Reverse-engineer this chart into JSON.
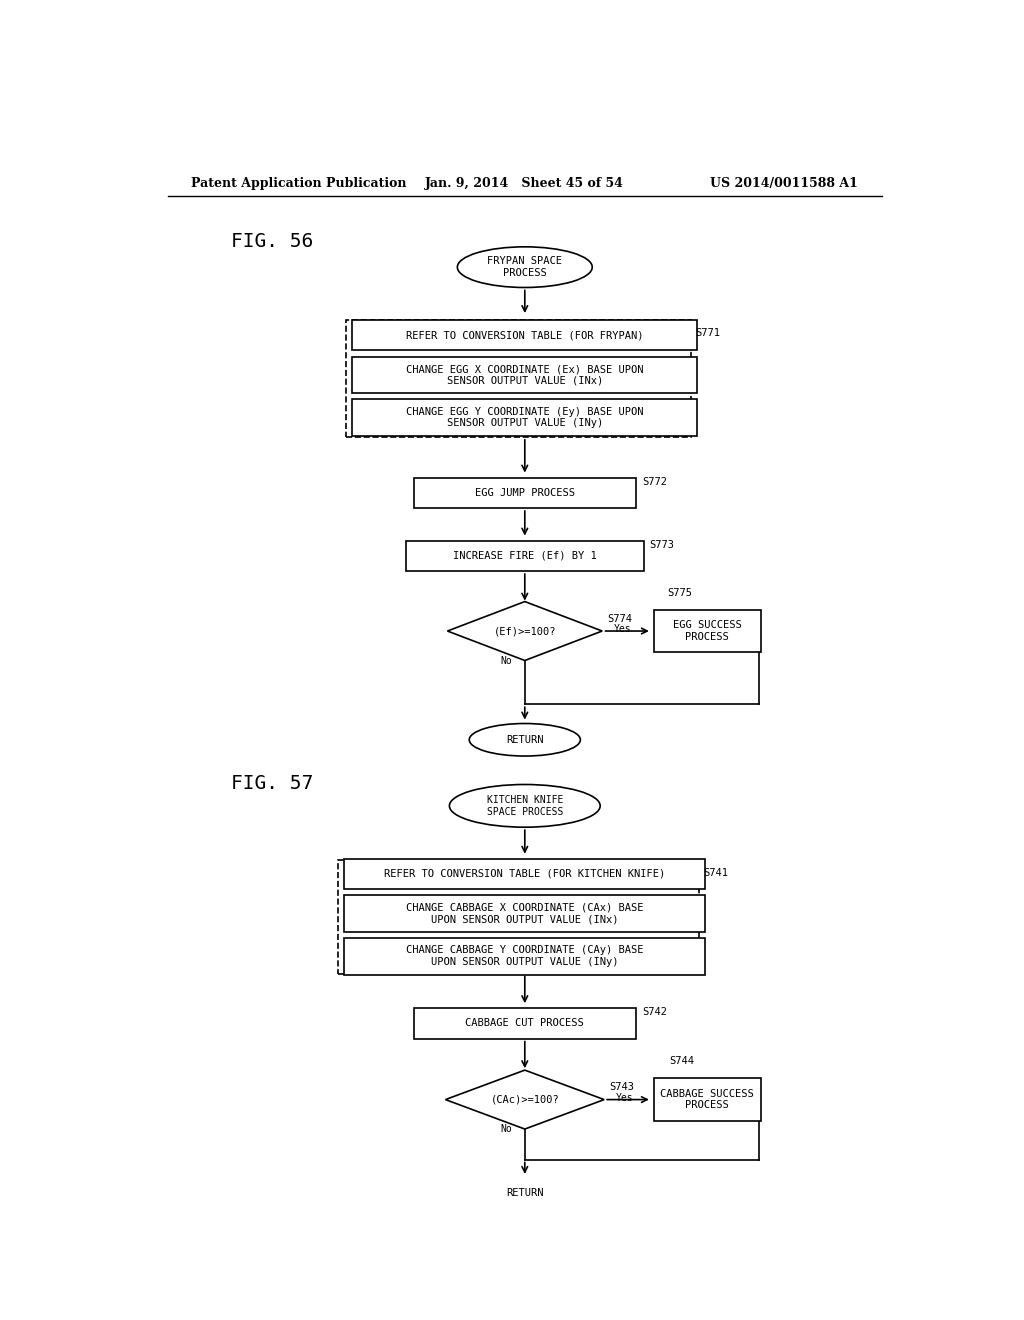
{
  "bg_color": "#ffffff",
  "header_left": "Patent Application Publication",
  "header_middle": "Jan. 9, 2014   Sheet 45 of 54",
  "header_right": "US 2014/0011588 A1",
  "fig56_label": "FIG. 56",
  "fig57_label": "FIG. 57"
}
